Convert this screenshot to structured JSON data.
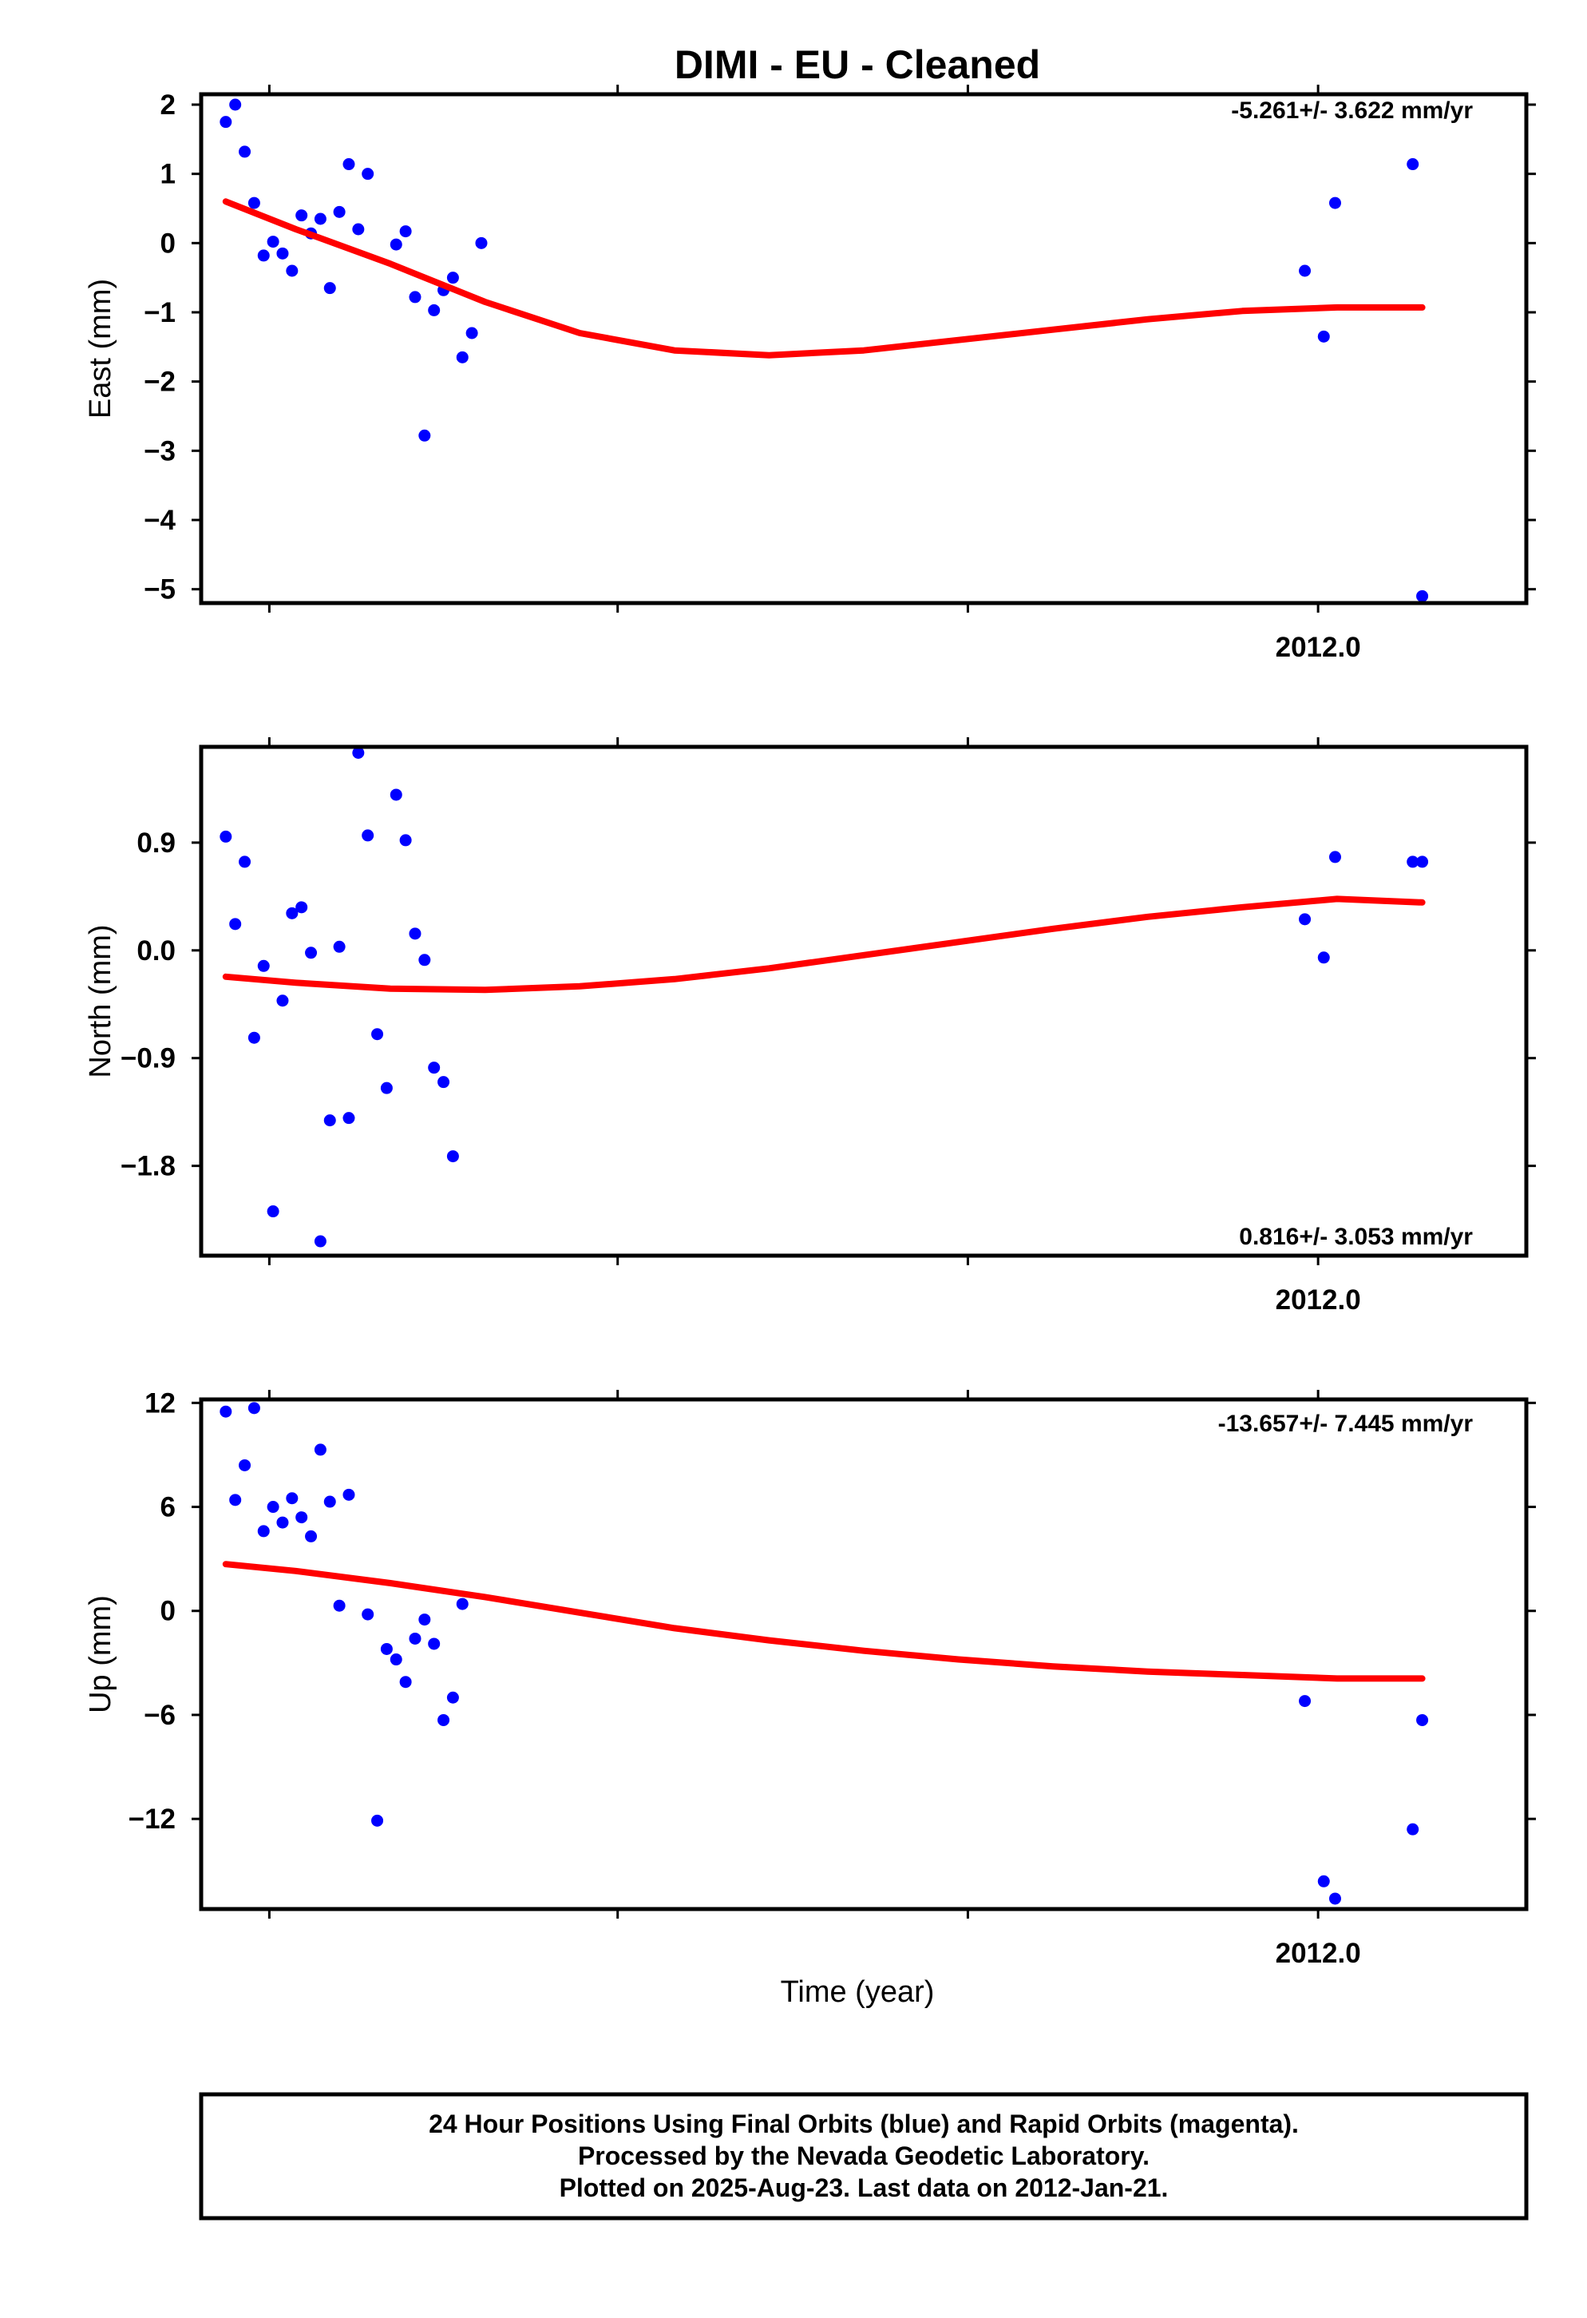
{
  "title": "DIMI  - EU - Cleaned",
  "xlabel": "Time (year)",
  "footer": [
    "24 Hour Positions Using Final Orbits (blue) and Rapid Orbits (magenta).",
    "Processed by the Nevada Geodetic Laboratory.",
    "Plotted on 2025-Aug-23. Last data on 2012-Jan-21."
  ],
  "colors": {
    "final_orbits": "#0000ff",
    "rapid_orbits": "#ff00ff",
    "fit": "#ff0000",
    "axes": "#000000"
  },
  "chart_data": [
    {
      "type": "scatter",
      "panel": "east",
      "ylabel": "East (mm)",
      "rate_text": "-5.261+/- 3.622 mm/yr",
      "xlim": [
        2011.4,
        2012.1
      ],
      "ylim": [
        -5.2,
        2.15
      ],
      "yticks": [
        2,
        1,
        0,
        -1,
        -2,
        -3,
        -4,
        -5
      ],
      "ytick_labels": [
        "2",
        "1",
        "0",
        "−1",
        "−2",
        "−3",
        "−4",
        "−5"
      ],
      "xticks": [
        2011.436,
        2011.62,
        2011.805,
        2011.99
      ],
      "xtick_labels": [
        "",
        "",
        "",
        "2012.0"
      ],
      "series": [
        {
          "color": "#0000ff",
          "x": [
            2011.413,
            2011.418,
            2011.423,
            2011.428,
            2011.433,
            2011.438,
            2011.443,
            2011.448,
            2011.453,
            2011.458,
            2011.463,
            2011.468,
            2011.473,
            2011.478,
            2011.483,
            2011.488,
            2011.503,
            2011.508,
            2011.513,
            2011.518,
            2011.523,
            2011.528,
            2011.533,
            2011.538,
            2011.543,
            2011.548,
            2011.983,
            2011.993,
            2011.999,
            2012.04,
            2012.045
          ],
          "y": [
            1.75,
            2.0,
            1.32,
            0.58,
            -0.18,
            0.02,
            -0.15,
            -0.4,
            0.4,
            0.14,
            0.35,
            -0.65,
            0.45,
            1.14,
            0.2,
            1.0,
            -0.02,
            0.17,
            -0.78,
            -2.78,
            -0.97,
            -0.68,
            -0.5,
            -1.65,
            -1.3,
            0.0,
            -0.4,
            -1.35,
            0.58,
            1.14,
            -5.1
          ]
        }
      ],
      "fit": {
        "x": [
          2011.413,
          2011.45,
          2011.5,
          2011.55,
          2011.6,
          2011.65,
          2011.7,
          2011.75,
          2011.8,
          2011.85,
          2011.9,
          2011.95,
          2012.0,
          2012.045
        ],
        "y": [
          0.6,
          0.2,
          -0.3,
          -0.85,
          -1.3,
          -1.55,
          -1.62,
          -1.55,
          -1.4,
          -1.25,
          -1.1,
          -0.98,
          -0.93,
          -0.93
        ]
      }
    },
    {
      "type": "scatter",
      "panel": "north",
      "ylabel": "North (mm)",
      "rate_text": "0.816+/- 3.053 mm/yr",
      "xlim": [
        2011.4,
        2012.1
      ],
      "ylim": [
        -2.55,
        1.7
      ],
      "yticks": [
        0.9,
        0.0,
        -0.9,
        -1.8
      ],
      "ytick_labels": [
        "0.9",
        "0.0",
        "−0.9",
        "−1.8"
      ],
      "xticks": [
        2011.436,
        2011.62,
        2011.805,
        2011.99
      ],
      "xtick_labels": [
        "",
        "",
        "",
        "2012.0"
      ],
      "series": [
        {
          "color": "#0000ff",
          "x": [
            2011.413,
            2011.418,
            2011.423,
            2011.428,
            2011.433,
            2011.438,
            2011.443,
            2011.448,
            2011.453,
            2011.458,
            2011.463,
            2011.468,
            2011.473,
            2011.478,
            2011.483,
            2011.488,
            2011.493,
            2011.498,
            2011.503,
            2011.508,
            2011.513,
            2011.518,
            2011.523,
            2011.528,
            2011.533,
            2011.983,
            2011.993,
            2011.999,
            2012.04,
            2012.045
          ],
          "y": [
            0.95,
            0.22,
            0.74,
            -0.73,
            -0.13,
            -2.18,
            -0.42,
            0.31,
            0.36,
            -0.02,
            -2.43,
            -1.42,
            0.03,
            -1.4,
            1.65,
            0.96,
            -0.7,
            -1.15,
            1.3,
            0.92,
            0.14,
            -0.08,
            -0.98,
            -1.1,
            -1.72,
            0.26,
            -0.06,
            0.78,
            0.74,
            0.74
          ]
        }
      ],
      "fit": {
        "x": [
          2011.413,
          2011.45,
          2011.5,
          2011.55,
          2011.6,
          2011.65,
          2011.7,
          2011.75,
          2011.8,
          2011.85,
          2011.9,
          2011.95,
          2012.0,
          2012.045
        ],
        "y": [
          -0.22,
          -0.27,
          -0.32,
          -0.33,
          -0.3,
          -0.24,
          -0.15,
          -0.04,
          0.07,
          0.18,
          0.28,
          0.36,
          0.43,
          0.4
        ]
      }
    },
    {
      "type": "scatter",
      "panel": "up",
      "ylabel": "Up (mm)",
      "rate_text": "-13.657+/- 7.445 mm/yr",
      "xlim": [
        2011.4,
        2012.1
      ],
      "ylim": [
        -17.2,
        12.2
      ],
      "yticks": [
        12,
        6,
        0,
        -6,
        -12
      ],
      "ytick_labels": [
        "12",
        "6",
        "0",
        "−6",
        "−12"
      ],
      "xticks": [
        2011.436,
        2011.62,
        2011.805,
        2011.99
      ],
      "xtick_labels": [
        "",
        "",
        "",
        "2012.0"
      ],
      "series": [
        {
          "color": "#0000ff",
          "x": [
            2011.413,
            2011.418,
            2011.423,
            2011.428,
            2011.433,
            2011.438,
            2011.443,
            2011.448,
            2011.453,
            2011.458,
            2011.463,
            2011.468,
            2011.473,
            2011.478,
            2011.488,
            2011.493,
            2011.498,
            2011.503,
            2011.508,
            2011.513,
            2011.518,
            2011.523,
            2011.528,
            2011.533,
            2011.538,
            2011.983,
            2011.993,
            2011.999,
            2012.04,
            2012.045
          ],
          "y": [
            11.5,
            6.4,
            8.4,
            11.7,
            4.6,
            6.0,
            5.1,
            6.5,
            5.4,
            4.3,
            9.3,
            6.3,
            0.3,
            6.7,
            -0.2,
            -12.1,
            -2.2,
            -2.8,
            -4.1,
            -1.6,
            -0.5,
            -1.9,
            -6.3,
            -5.0,
            0.4,
            -5.2,
            -15.6,
            -16.6,
            -12.6,
            -6.3
          ]
        }
      ],
      "fit": {
        "x": [
          2011.413,
          2011.45,
          2011.5,
          2011.55,
          2011.6,
          2011.65,
          2011.7,
          2011.75,
          2011.8,
          2011.85,
          2011.9,
          2011.95,
          2012.0,
          2012.045
        ],
        "y": [
          2.7,
          2.3,
          1.6,
          0.8,
          -0.1,
          -1.0,
          -1.7,
          -2.3,
          -2.8,
          -3.2,
          -3.5,
          -3.7,
          -3.9,
          -3.9
        ]
      }
    }
  ]
}
